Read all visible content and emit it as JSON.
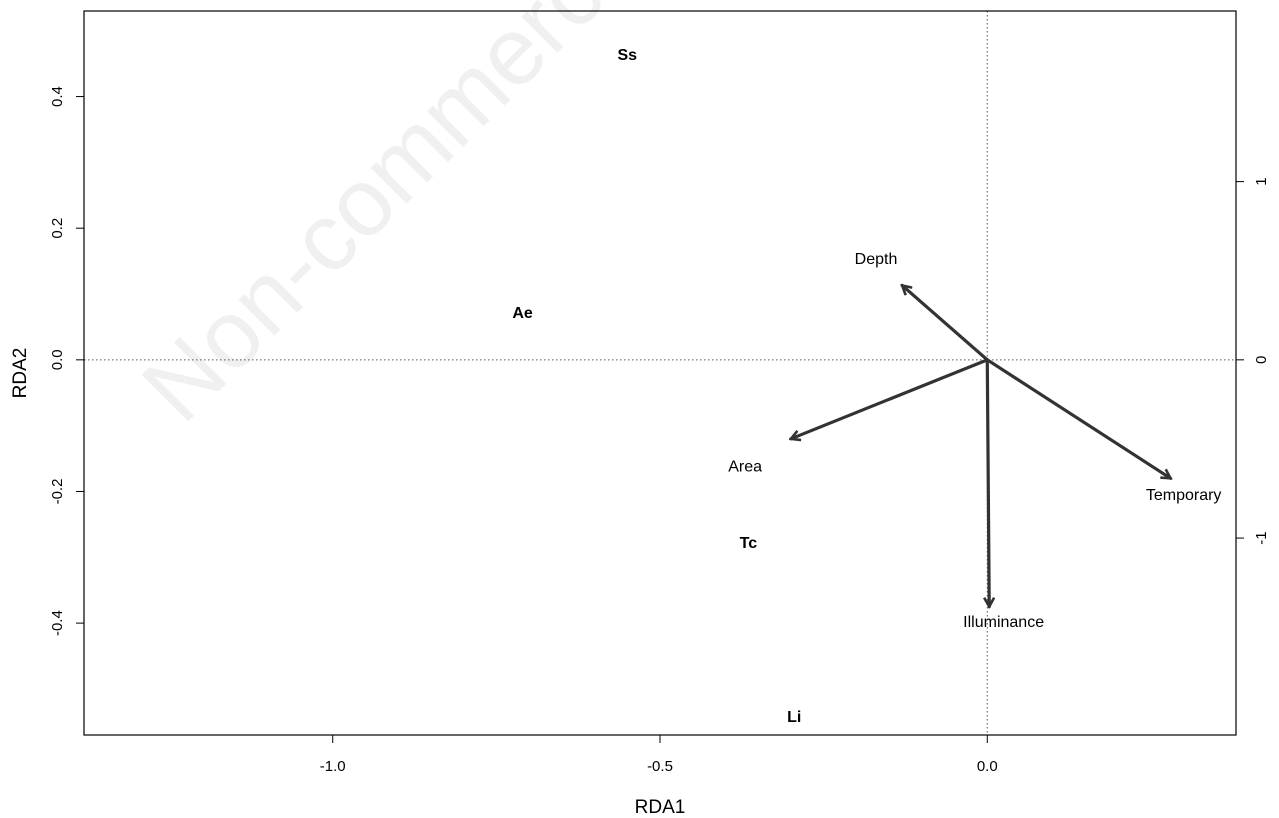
{
  "chart_data": {
    "type": "scatter",
    "subtype": "rda-biplot",
    "xlabel": "RDA1",
    "ylabel": "RDA2",
    "xlim": [
      -1.38,
      0.38
    ],
    "ylim": [
      -0.57,
      0.53
    ],
    "x_ticks": [
      -1.0,
      -0.5,
      0.0
    ],
    "x_tick_labels": [
      "-1.0",
      "-0.5",
      "0.0"
    ],
    "y_ticks": [
      -0.4,
      -0.2,
      0.0,
      0.2,
      0.4
    ],
    "y_tick_labels": [
      "-0.4",
      "-0.2",
      "0.0",
      "0.2",
      "0.4"
    ],
    "right_axis": {
      "ticks": [
        -1,
        0,
        1
      ],
      "tick_labels": [
        "-1",
        "0",
        "1"
      ],
      "scale": 0.4835
    },
    "reference_lines": {
      "x": 0,
      "y": 0,
      "style": "dotted"
    },
    "species": [
      {
        "label": "Ss",
        "x": -0.55,
        "y": 0.465
      },
      {
        "label": "Ae",
        "x": -0.71,
        "y": 0.073
      },
      {
        "label": "Tc",
        "x": -0.365,
        "y": -0.277
      },
      {
        "label": "Li",
        "x": -0.295,
        "y": -0.541
      }
    ],
    "vectors": [
      {
        "label": "Depth",
        "x": -0.13,
        "y": 0.113,
        "label_x": -0.17,
        "label_y": 0.153
      },
      {
        "label": "Area",
        "x": -0.3,
        "y": -0.12,
        "label_x": -0.37,
        "label_y": -0.162
      },
      {
        "label": "Temporary",
        "x": 0.28,
        "y": -0.18,
        "label_x": 0.3,
        "label_y": -0.205
      },
      {
        "label": "Illuminance",
        "x": 0.003,
        "y": -0.375,
        "label_x": 0.025,
        "label_y": -0.398
      }
    ]
  },
  "watermark": "Non-commercial"
}
